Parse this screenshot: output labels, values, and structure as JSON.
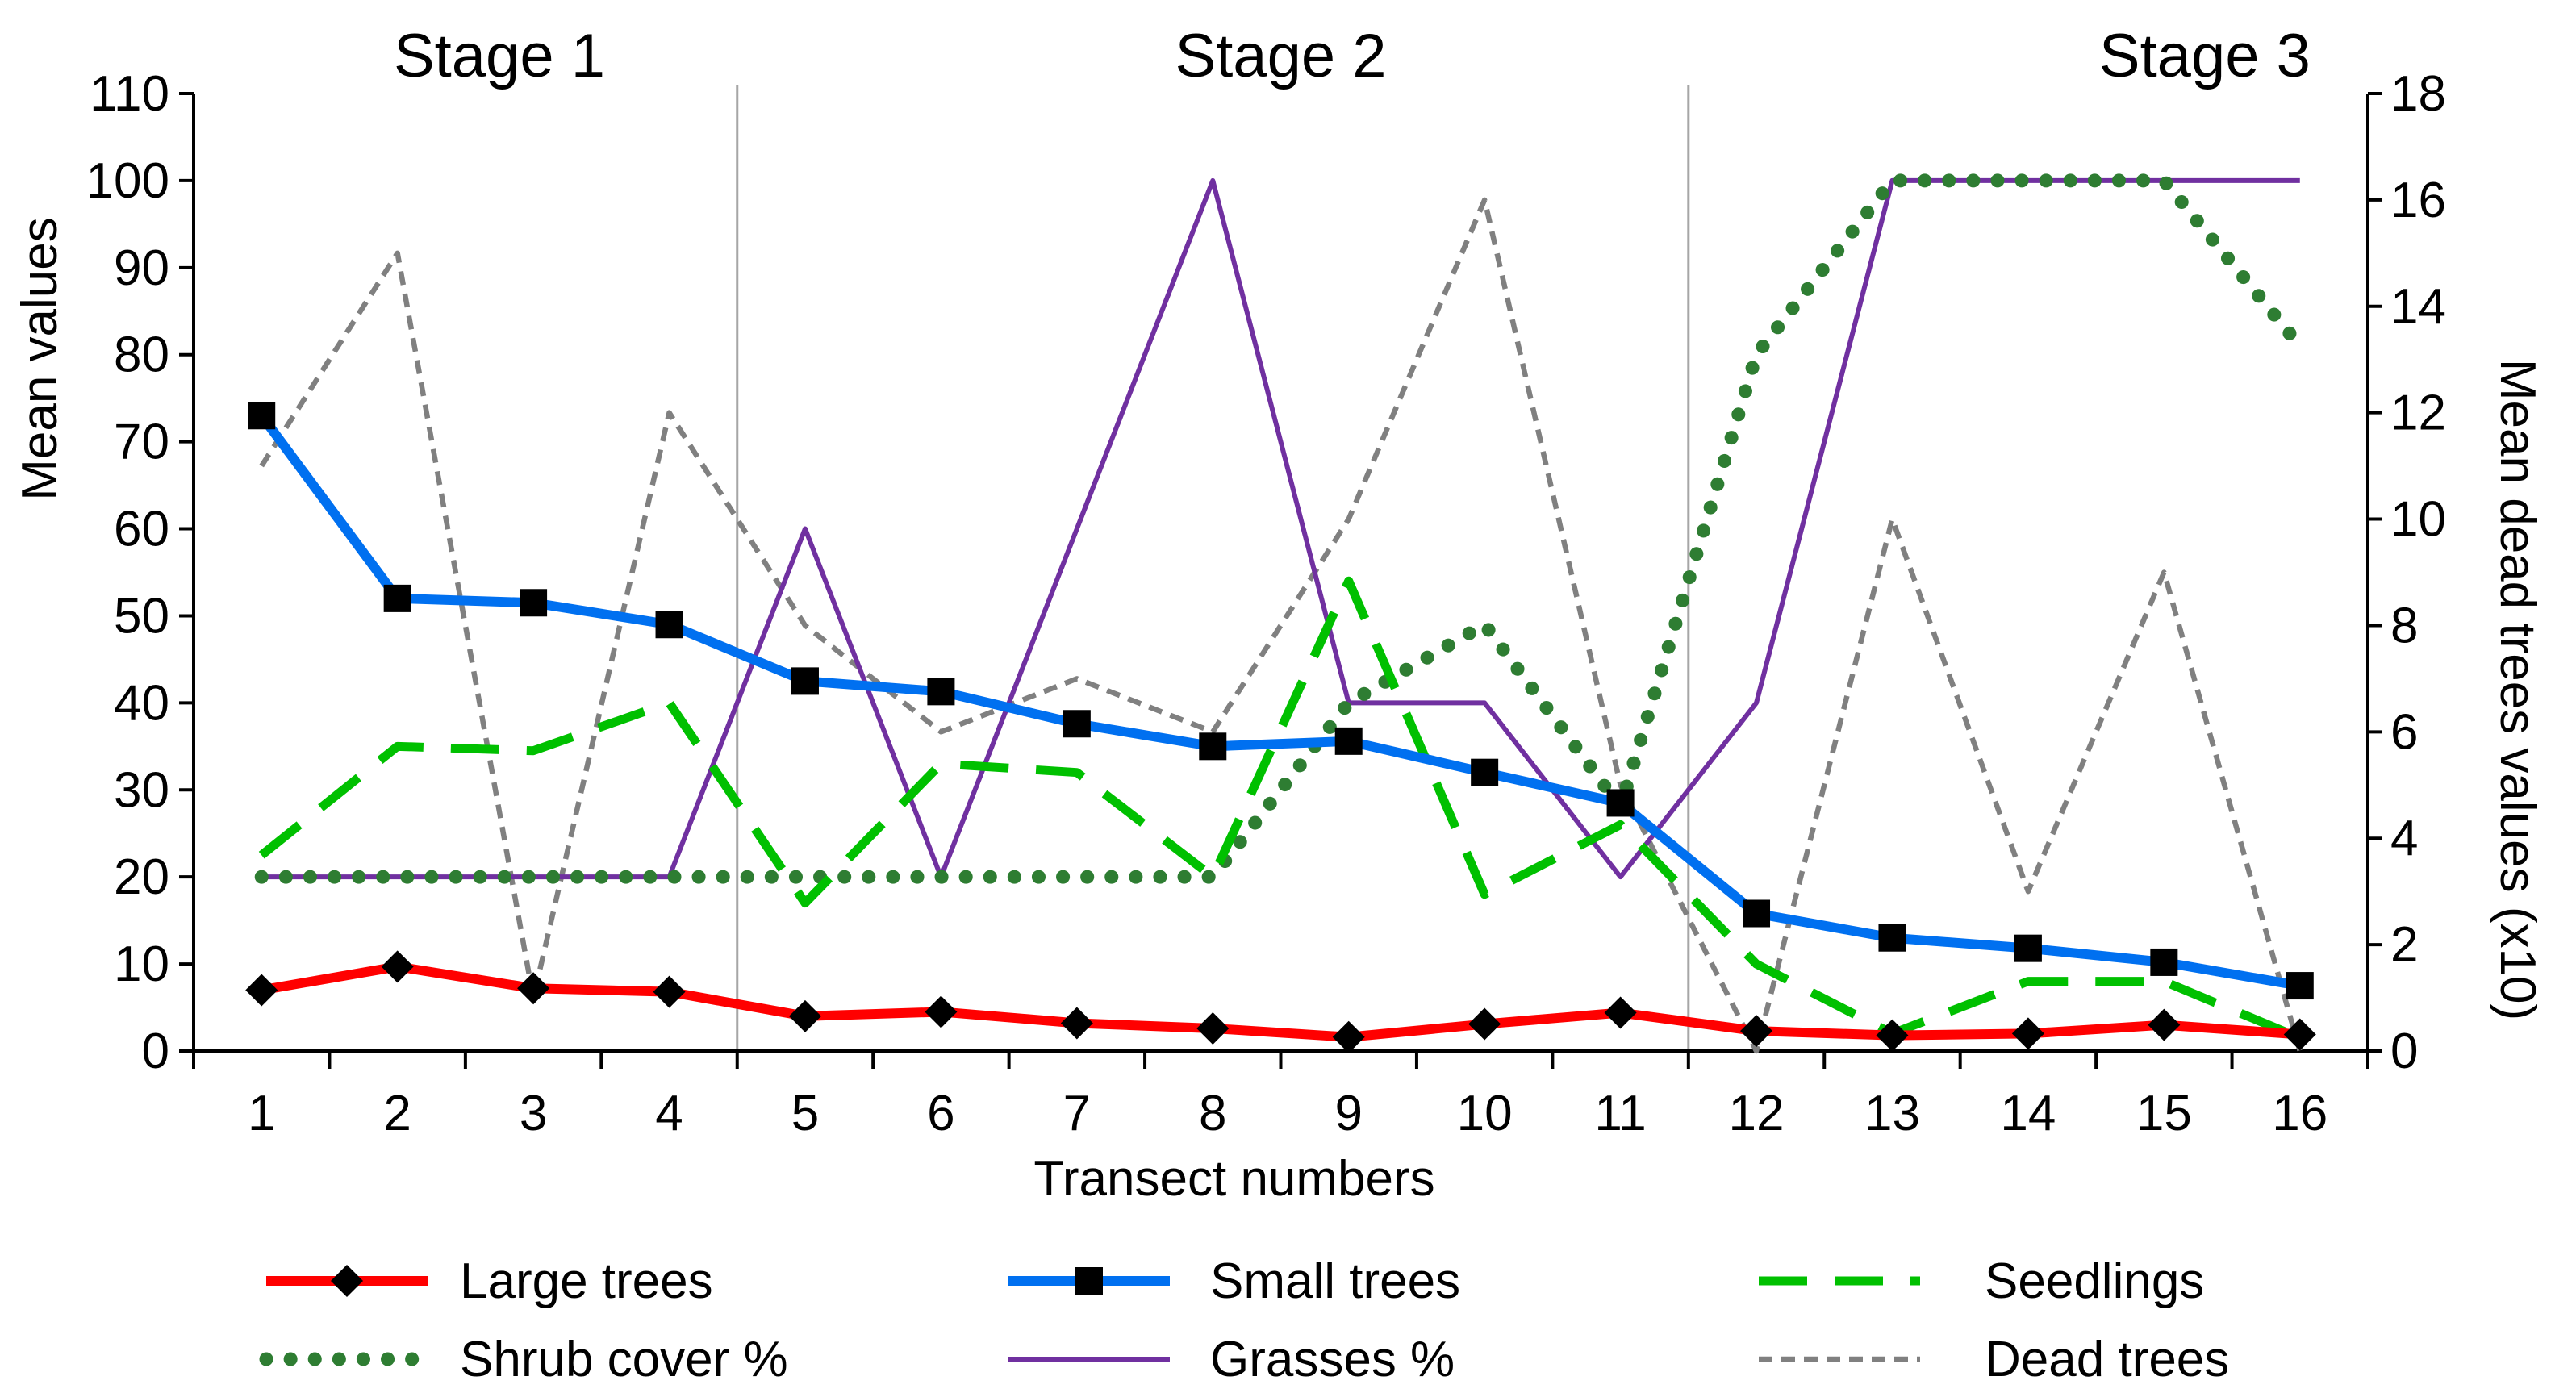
{
  "chart_data": {
    "type": "line",
    "title": "",
    "xlabel": "Transect numbers",
    "ylabel": "Mean values",
    "y2label": "Mean dead trees values (x10)",
    "x": [
      1,
      2,
      3,
      4,
      5,
      6,
      7,
      8,
      9,
      10,
      11,
      12,
      13,
      14,
      15,
      16
    ],
    "x_tick_labels": [
      "1",
      "2",
      "3",
      "4",
      "5",
      "6",
      "7",
      "8",
      "9",
      "10",
      "11",
      "12",
      "13",
      "14",
      "15",
      "16"
    ],
    "ylim": [
      0,
      110
    ],
    "y_ticks": [
      0,
      10,
      20,
      30,
      40,
      50,
      60,
      70,
      80,
      90,
      100,
      110
    ],
    "y_tick_labels": [
      "0",
      "10",
      "20",
      "30",
      "40",
      "50",
      "60",
      "70",
      "80",
      "90",
      "100",
      "110"
    ],
    "y2lim": [
      0,
      18
    ],
    "y2_ticks": [
      0,
      2,
      4,
      6,
      8,
      10,
      12,
      14,
      16,
      18
    ],
    "y2_tick_labels": [
      "0",
      "2",
      "4",
      "6",
      "8",
      "10",
      "12",
      "14",
      "16",
      "18"
    ],
    "grid": false,
    "legend_position": "bottom",
    "stage_dividers": [
      4.5,
      11.5
    ],
    "stages": [
      {
        "label": "Stage 1",
        "x": 2.75
      },
      {
        "label": "Stage 2",
        "x": 8.5
      },
      {
        "label": "Stage 3",
        "x": 15.3
      }
    ],
    "series": [
      {
        "name": "Large trees",
        "axis": "left",
        "color": "#ff0000",
        "style": "solid",
        "marker": "diamond",
        "values": [
          7,
          9.7,
          7.2,
          6.8,
          4,
          4.5,
          3.2,
          2.6,
          1.6,
          3.1,
          4.4,
          2.3,
          1.8,
          2,
          3,
          1.9
        ]
      },
      {
        "name": "Small trees",
        "axis": "left",
        "color": "#0070f0",
        "style": "solid",
        "marker": "square",
        "values": [
          73,
          52,
          51.5,
          49,
          42.5,
          41.3,
          37.6,
          35,
          35.6,
          32,
          28.5,
          15.8,
          13,
          11.8,
          10.2,
          7.5
        ]
      },
      {
        "name": "Seedlings",
        "axis": "left",
        "color": "#00c000",
        "style": "dash",
        "marker": "none",
        "values": [
          22.5,
          35,
          34.5,
          40,
          17,
          33,
          32,
          20,
          54,
          18,
          26,
          10,
          2,
          8,
          8,
          1.5
        ]
      },
      {
        "name": "Shrub cover %",
        "axis": "left",
        "color": "#2e7d32",
        "style": "dot",
        "marker": "none",
        "values": [
          20,
          20,
          20,
          20,
          20,
          20,
          20,
          20,
          40,
          49,
          28,
          80,
          100,
          100,
          100,
          81
        ]
      },
      {
        "name": "Grasses %",
        "axis": "left",
        "color": "#7030a0",
        "style": "thin",
        "marker": "none",
        "values": [
          20,
          20,
          20,
          20,
          60,
          20,
          60,
          100,
          40,
          40,
          20,
          40,
          100,
          100,
          100,
          100
        ]
      },
      {
        "name": "Dead trees",
        "axis": "right",
        "color": "#808080",
        "style": "shortdash",
        "marker": "none",
        "values": [
          11,
          15,
          1,
          12,
          8,
          6,
          7,
          6,
          10,
          16,
          5,
          0,
          10,
          3,
          9,
          0
        ]
      }
    ]
  }
}
